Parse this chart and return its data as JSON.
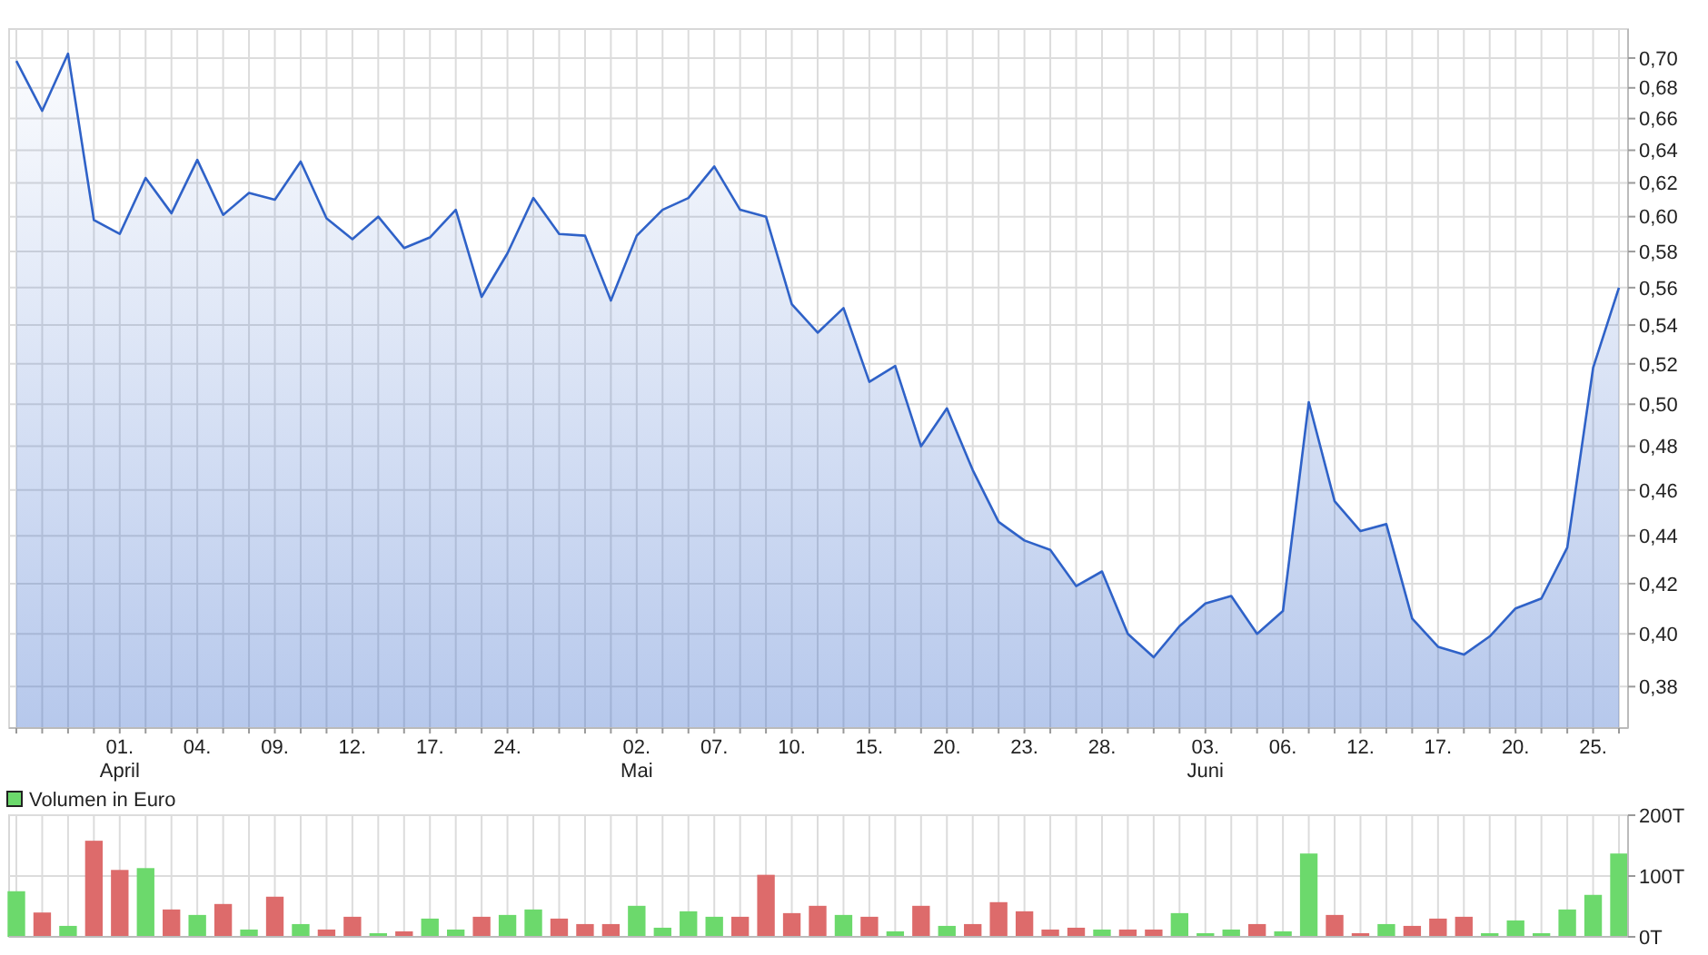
{
  "chart_data": [
    {
      "type": "area",
      "log": true,
      "grid": true,
      "ylim": [
        0.365,
        0.72
      ],
      "yticks": [
        {
          "value": 0.38,
          "label": "0,38"
        },
        {
          "value": 0.4,
          "label": "0,40"
        },
        {
          "value": 0.42,
          "label": "0,42"
        },
        {
          "value": 0.44,
          "label": "0,44"
        },
        {
          "value": 0.46,
          "label": "0,46"
        },
        {
          "value": 0.48,
          "label": "0,48"
        },
        {
          "value": 0.5,
          "label": "0,50"
        },
        {
          "value": 0.52,
          "label": "0,52"
        },
        {
          "value": 0.54,
          "label": "0,54"
        },
        {
          "value": 0.56,
          "label": "0,56"
        },
        {
          "value": 0.58,
          "label": "0,58"
        },
        {
          "value": 0.6,
          "label": "0,60"
        },
        {
          "value": 0.62,
          "label": "0,62"
        },
        {
          "value": 0.64,
          "label": "0,64"
        },
        {
          "value": 0.66,
          "label": "0,66"
        },
        {
          "value": 0.68,
          "label": "0,68"
        },
        {
          "value": 0.7,
          "label": "0,70"
        }
      ],
      "categories": [
        null,
        null,
        null,
        null,
        "01.\nApril",
        null,
        null,
        "04.",
        null,
        null,
        "09.",
        null,
        null,
        "12.",
        null,
        null,
        "17.",
        null,
        null,
        "24.",
        null,
        null,
        null,
        null,
        "02.\nMai",
        null,
        null,
        "07.",
        null,
        null,
        "10.",
        null,
        null,
        "15.",
        null,
        null,
        "20.",
        null,
        null,
        "23.",
        null,
        null,
        "28.",
        null,
        null,
        null,
        "03.\nJuni",
        null,
        null,
        "06.",
        null,
        null,
        "12.",
        null,
        null,
        "17.",
        null,
        null,
        "20.",
        null,
        null,
        "25.",
        null
      ],
      "series": [
        {
          "color": "#2f62c8",
          "values": [
            0.698,
            0.665,
            0.703,
            0.598,
            0.59,
            0.623,
            0.602,
            0.634,
            0.601,
            0.614,
            0.61,
            0.633,
            0.599,
            0.587,
            0.6,
            0.582,
            0.588,
            0.604,
            0.555,
            0.579,
            0.611,
            0.59,
            0.589,
            0.553,
            0.589,
            0.604,
            0.611,
            0.63,
            0.604,
            0.6,
            0.551,
            0.536,
            0.549,
            0.511,
            0.519,
            0.48,
            0.498,
            0.469,
            0.446,
            0.438,
            0.434,
            0.419,
            0.425,
            0.4,
            0.391,
            0.403,
            0.412,
            0.415,
            0.4,
            0.409,
            0.501,
            0.455,
            0.442,
            0.445,
            0.406,
            0.395,
            0.392,
            0.399,
            0.41,
            0.414,
            0.435,
            0.518,
            0.56
          ]
        }
      ]
    },
    {
      "type": "bar",
      "grid": true,
      "legend": "top left",
      "tick_labels": "y",
      "ylim": [
        0,
        200
      ],
      "yticks": [
        {
          "value": 0,
          "label": "0T"
        },
        {
          "value": 100,
          "label": "100T"
        },
        {
          "value": 200,
          "label": "200T"
        }
      ],
      "categories": [
        null,
        null,
        null,
        null,
        null,
        null,
        null,
        null,
        null,
        null,
        null,
        null,
        null,
        null,
        null,
        null,
        null,
        null,
        null,
        null,
        null,
        null,
        null,
        null,
        null,
        null,
        null,
        null,
        null,
        null,
        null,
        null,
        null,
        null,
        null,
        null,
        null,
        null,
        null,
        null,
        null,
        null,
        null,
        null,
        null,
        null,
        null,
        null,
        null,
        null,
        null,
        null,
        null,
        null,
        null,
        null,
        null,
        null,
        null,
        null,
        null,
        null,
        null
      ],
      "series": [
        {
          "name": "Volumen in Euro",
          "color": "#6cd96c",
          "values": [
            75,
            40,
            18,
            158,
            110,
            113,
            45,
            36,
            54,
            12,
            66,
            21,
            12,
            33,
            6,
            9,
            30,
            12,
            33,
            36,
            45,
            30,
            21,
            21,
            51,
            15,
            42,
            33,
            33,
            102,
            39,
            51,
            36,
            33,
            9,
            51,
            18,
            21,
            57,
            42,
            12,
            15,
            12,
            12,
            12,
            39,
            6,
            12,
            21,
            9,
            137,
            36,
            6,
            21,
            18,
            30,
            33,
            6,
            27,
            6,
            45,
            69,
            137
          ],
          "colors": [
            "#6cd96c",
            "#dd6b6b",
            "#6cd96c",
            "#dd6b6b",
            "#dd6b6b",
            "#6cd96c",
            "#dd6b6b",
            "#6cd96c",
            "#dd6b6b",
            "#6cd96c",
            "#dd6b6b",
            "#6cd96c",
            "#dd6b6b",
            "#dd6b6b",
            "#6cd96c",
            "#dd6b6b",
            "#6cd96c",
            "#6cd96c",
            "#dd6b6b",
            "#6cd96c",
            "#6cd96c",
            "#dd6b6b",
            "#dd6b6b",
            "#dd6b6b",
            "#6cd96c",
            "#6cd96c",
            "#6cd96c",
            "#6cd96c",
            "#dd6b6b",
            "#dd6b6b",
            "#dd6b6b",
            "#dd6b6b",
            "#6cd96c",
            "#dd6b6b",
            "#6cd96c",
            "#dd6b6b",
            "#6cd96c",
            "#dd6b6b",
            "#dd6b6b",
            "#dd6b6b",
            "#dd6b6b",
            "#dd6b6b",
            "#6cd96c",
            "#dd6b6b",
            "#dd6b6b",
            "#6cd96c",
            "#6cd96c",
            "#6cd96c",
            "#dd6b6b",
            "#6cd96c",
            "#6cd96c",
            "#dd6b6b",
            "#dd6b6b",
            "#6cd96c",
            "#dd6b6b",
            "#dd6b6b",
            "#dd6b6b",
            "#6cd96c",
            "#6cd96c",
            "#6cd96c",
            "#6cd96c",
            "#6cd96c",
            "#6cd96c"
          ]
        }
      ]
    }
  ]
}
